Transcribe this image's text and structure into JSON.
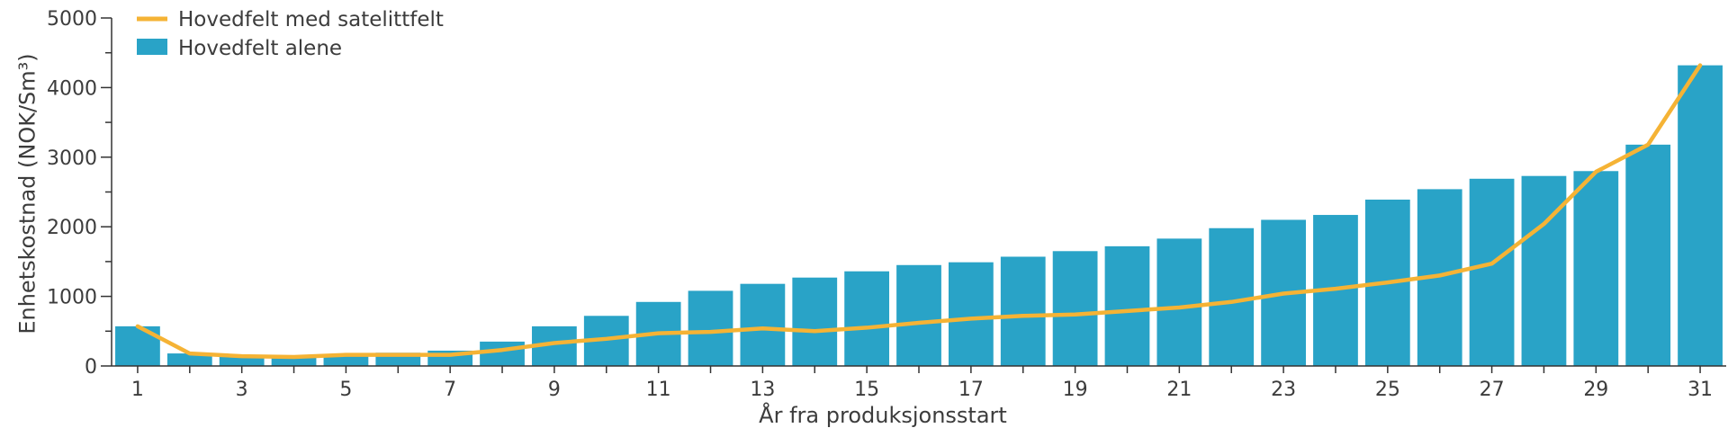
{
  "chart_data": {
    "type": "bar",
    "title": "",
    "xlabel": "År fra produksjonsstart",
    "ylabel": "Enhetskostnad (NOK/Sm³)",
    "ylim": [
      0,
      5000
    ],
    "yticks": [
      0,
      1000,
      2000,
      3000,
      4000,
      5000
    ],
    "xtick_labels": [
      "1",
      "3",
      "5",
      "7",
      "9",
      "11",
      "13",
      "15",
      "17",
      "19",
      "21",
      "23",
      "25",
      "27",
      "29",
      "31"
    ],
    "categories": [
      1,
      2,
      3,
      4,
      5,
      6,
      7,
      8,
      9,
      10,
      11,
      12,
      13,
      14,
      15,
      16,
      17,
      18,
      19,
      20,
      21,
      22,
      23,
      24,
      25,
      26,
      27,
      28,
      29,
      30,
      31
    ],
    "legend_position": "top-left",
    "grid": false,
    "series": [
      {
        "name": "Hovedfelt alene",
        "kind": "bar",
        "color": "#29a3c7",
        "values": [
          570,
          180,
          150,
          140,
          160,
          190,
          220,
          350,
          570,
          720,
          920,
          1080,
          1180,
          1270,
          1360,
          1450,
          1490,
          1570,
          1650,
          1720,
          1830,
          1980,
          2100,
          2170,
          2390,
          2540,
          2690,
          2730,
          2800,
          3180,
          4320
        ]
      },
      {
        "name": "Hovedfelt med satelittfelt",
        "kind": "line",
        "color": "#f5b335",
        "values": [
          570,
          180,
          140,
          130,
          160,
          160,
          160,
          230,
          330,
          390,
          470,
          490,
          540,
          500,
          550,
          620,
          680,
          720,
          740,
          790,
          840,
          920,
          1040,
          1110,
          1200,
          1300,
          1470,
          2040,
          2790,
          3180,
          4320
        ]
      }
    ]
  }
}
